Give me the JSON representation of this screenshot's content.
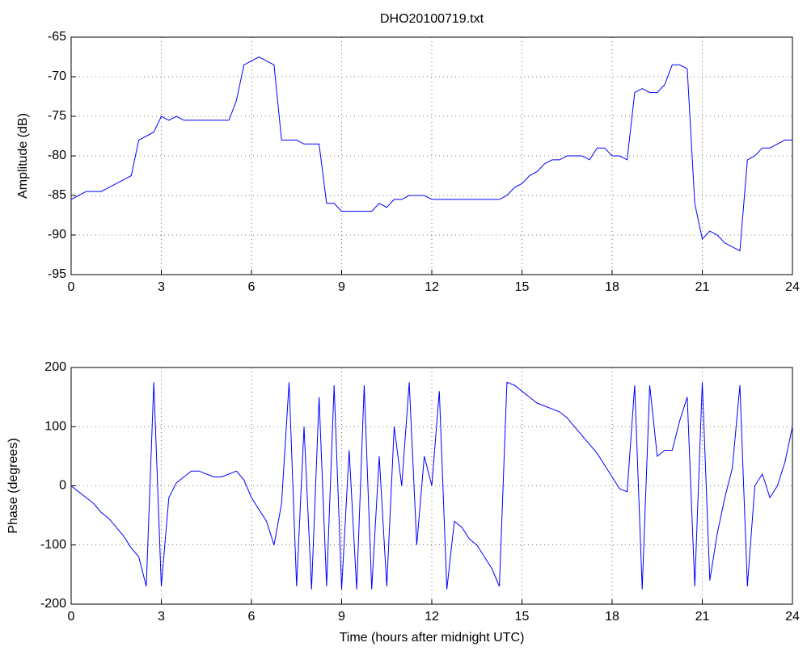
{
  "chart_data": [
    {
      "type": "line",
      "title": "DHO20100719.txt",
      "y_label": "Amplitude (dB)",
      "x": [
        0,
        0.25,
        0.5,
        0.75,
        1,
        1.25,
        1.5,
        1.75,
        2,
        2.25,
        2.5,
        2.75,
        3,
        3.25,
        3.5,
        3.75,
        4,
        4.25,
        4.5,
        4.75,
        5,
        5.25,
        5.5,
        5.75,
        6,
        6.25,
        6.5,
        6.75,
        7,
        7.25,
        7.5,
        7.75,
        8,
        8.25,
        8.5,
        8.75,
        9,
        9.25,
        9.5,
        9.75,
        10,
        10.25,
        10.5,
        10.75,
        11,
        11.25,
        11.5,
        11.75,
        12,
        12.25,
        12.5,
        12.75,
        13,
        13.25,
        13.5,
        13.75,
        14,
        14.25,
        14.5,
        14.75,
        15,
        15.25,
        15.5,
        15.75,
        16,
        16.25,
        16.5,
        16.75,
        17,
        17.25,
        17.5,
        17.75,
        18,
        18.25,
        18.5,
        18.75,
        19,
        19.25,
        19.5,
        19.75,
        20,
        20.25,
        20.5,
        20.75,
        21,
        21.25,
        21.5,
        21.75,
        22,
        22.25,
        22.5,
        22.75,
        23,
        23.25,
        23.5,
        23.75,
        24
      ],
      "series": [
        {
          "color": "#0000ff",
          "values": [
            -85.5,
            -85,
            -84.5,
            -84.5,
            -84.5,
            -84,
            -83.5,
            -83,
            -82.5,
            -78,
            -77.5,
            -77,
            -75,
            -75.5,
            -75,
            -75.5,
            -75.5,
            -75.5,
            -75.5,
            -75.5,
            -75.5,
            -75.5,
            -73,
            -68.5,
            -68,
            -67.5,
            -68,
            -68.5,
            -78,
            -78,
            -78,
            -78.5,
            -78.5,
            -78.5,
            -86,
            -86,
            -87,
            -87,
            -87,
            -87,
            -87,
            -86,
            -86.5,
            -85.5,
            -85.5,
            -85,
            -85,
            -85,
            -85.5,
            -85.5,
            -85.5,
            -85.5,
            -85.5,
            -85.5,
            -85.5,
            -85.5,
            -85.5,
            -85.5,
            -85,
            -84,
            -83.5,
            -82.5,
            -82,
            -81,
            -80.5,
            -80.5,
            -80,
            -80,
            -80,
            -80.5,
            -79,
            -79,
            -80,
            -80,
            -80.5,
            -72,
            -71.5,
            -72,
            -72,
            -71,
            -68.5,
            -68.5,
            -69,
            -86,
            -90.5,
            -89.5,
            -90,
            -91,
            -91.5,
            -92,
            -80.5,
            -80,
            -79,
            -79,
            -78.5,
            -78,
            -78
          ]
        }
      ],
      "xlim": [
        0,
        24
      ],
      "xticks": [
        0,
        3,
        6,
        9,
        12,
        15,
        18,
        21,
        24
      ],
      "ylim": [
        -95,
        -65
      ],
      "yticks": [
        -95,
        -90,
        -85,
        -80,
        -75,
        -70,
        -65
      ],
      "grid": true
    },
    {
      "type": "line",
      "x_label": "Time (hours after midnight UTC)",
      "y_label": "Phase (degrees)",
      "x": [
        0,
        0.25,
        0.5,
        0.75,
        1,
        1.25,
        1.5,
        1.75,
        2,
        2.25,
        2.5,
        2.75,
        3,
        3.25,
        3.5,
        3.75,
        4,
        4.25,
        4.5,
        4.75,
        5,
        5.25,
        5.5,
        5.75,
        6,
        6.25,
        6.5,
        6.75,
        7,
        7.25,
        7.5,
        7.75,
        8,
        8.25,
        8.5,
        8.75,
        9,
        9.25,
        9.5,
        9.75,
        10,
        10.25,
        10.5,
        10.75,
        11,
        11.25,
        11.5,
        11.75,
        12,
        12.25,
        12.5,
        12.75,
        13,
        13.25,
        13.5,
        13.75,
        14,
        14.25,
        14.5,
        14.75,
        15,
        15.25,
        15.5,
        15.75,
        16,
        16.25,
        16.5,
        16.75,
        17,
        17.25,
        17.5,
        17.75,
        18,
        18.25,
        18.5,
        18.75,
        19,
        19.25,
        19.5,
        19.75,
        20,
        20.25,
        20.5,
        20.75,
        21,
        21.25,
        21.5,
        21.75,
        22,
        22.25,
        22.5,
        22.75,
        23,
        23.25,
        23.5,
        23.75,
        24
      ],
      "series": [
        {
          "color": "#0000ff",
          "values": [
            0,
            -10,
            -20,
            -30,
            -45,
            -55,
            -70,
            -85,
            -105,
            -120,
            -170,
            175,
            -170,
            -20,
            5,
            15,
            25,
            25,
            20,
            15,
            15,
            20,
            25,
            10,
            -20,
            -40,
            -60,
            -100,
            -30,
            175,
            -170,
            100,
            -175,
            150,
            -170,
            170,
            -175,
            60,
            -175,
            170,
            -175,
            50,
            -170,
            100,
            0,
            175,
            -100,
            50,
            0,
            160,
            -175,
            -60,
            -70,
            -90,
            -100,
            -120,
            -140,
            -170,
            175,
            170,
            160,
            150,
            140,
            135,
            130,
            125,
            115,
            100,
            85,
            70,
            55,
            35,
            15,
            -5,
            -10,
            170,
            -175,
            170,
            50,
            60,
            60,
            110,
            150,
            -170,
            175,
            -160,
            -80,
            -20,
            30,
            170,
            -170,
            0,
            20,
            -20,
            0,
            40,
            100
          ]
        }
      ],
      "xlim": [
        0,
        24
      ],
      "xticks": [
        0,
        3,
        6,
        9,
        12,
        15,
        18,
        21,
        24
      ],
      "ylim": [
        -200,
        200
      ],
      "yticks": [
        -200,
        -100,
        0,
        100,
        200
      ],
      "grid": true
    }
  ]
}
